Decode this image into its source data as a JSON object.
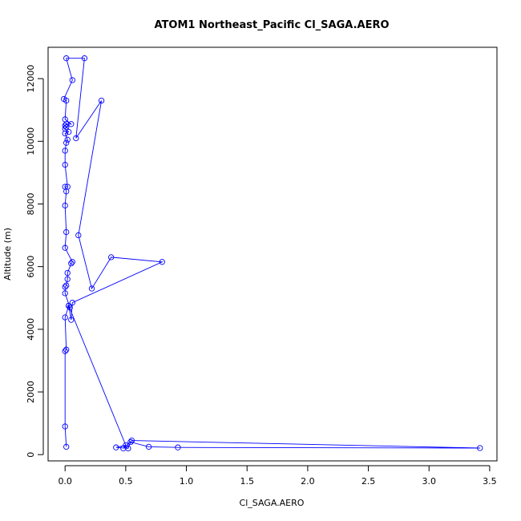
{
  "chart_data": {
    "type": "line",
    "title": "ATOM1 Northeast_Pacific Cl_SAGA.AERO",
    "xlabel": "Cl_SAGA.AERO",
    "ylabel": "Altitude (m)",
    "xlim": [
      -0.14,
      3.56
    ],
    "ylim": [
      -200,
      13000
    ],
    "xticks": [
      0,
      0.5,
      1,
      1.5,
      2,
      2.5,
      3,
      3.5
    ],
    "xtick_labels": [
      "0.0",
      "0.5",
      "1.0",
      "1.5",
      "2.0",
      "2.5",
      "3.0",
      "3.5"
    ],
    "yticks": [
      0,
      2000,
      4000,
      6000,
      8000,
      10000,
      12000
    ],
    "ytick_labels": [
      "0",
      "2000",
      "4000",
      "6000",
      "8000",
      "10000",
      "12000"
    ],
    "grid": false,
    "legend": "none",
    "color": "#0000FF",
    "series": [
      {
        "points": [
          [
            0.01,
            250
          ],
          [
            0.0,
            900
          ],
          [
            0.0,
            3300
          ],
          [
            0.01,
            3350
          ],
          [
            0.0,
            4380
          ],
          [
            0.03,
            4750
          ],
          [
            0.04,
            4700
          ],
          [
            0.0,
            5150
          ],
          [
            0.0,
            5350
          ],
          [
            0.01,
            5400
          ],
          [
            0.02,
            5600
          ],
          [
            0.02,
            5800
          ],
          [
            0.05,
            6100
          ],
          [
            0.06,
            6150
          ],
          [
            0.0,
            6600
          ],
          [
            0.01,
            7100
          ],
          [
            0.0,
            7950
          ],
          [
            0.01,
            8400
          ],
          [
            0.0,
            8550
          ],
          [
            0.02,
            8550
          ],
          [
            0.0,
            9250
          ],
          [
            0.0,
            9700
          ],
          [
            0.01,
            9950
          ],
          [
            0.02,
            10050
          ],
          [
            0.0,
            10250
          ],
          [
            0.03,
            10300
          ],
          [
            0.0,
            10400
          ],
          [
            0.01,
            10450
          ],
          [
            0.0,
            10500
          ],
          [
            0.01,
            10550
          ],
          [
            0.05,
            10550
          ],
          [
            0.0,
            10700
          ],
          [
            0.01,
            11300
          ],
          [
            -0.01,
            11350
          ],
          [
            0.06,
            11950
          ],
          [
            0.01,
            12650
          ],
          [
            0.16,
            12650
          ],
          [
            0.09,
            10100
          ],
          [
            0.3,
            11300
          ],
          [
            0.11,
            7000
          ],
          [
            0.22,
            5300
          ],
          [
            0.38,
            6300
          ],
          [
            0.8,
            6150
          ],
          [
            0.06,
            4850
          ],
          [
            0.05,
            4300
          ],
          [
            0.03,
            4750
          ],
          [
            0.5,
            300
          ],
          [
            0.42,
            230
          ],
          [
            0.52,
            200
          ],
          [
            0.54,
            400
          ],
          [
            0.69,
            250
          ],
          [
            0.93,
            230
          ],
          [
            3.42,
            210
          ],
          [
            0.55,
            450
          ],
          [
            0.48,
            200
          ]
        ]
      }
    ]
  }
}
